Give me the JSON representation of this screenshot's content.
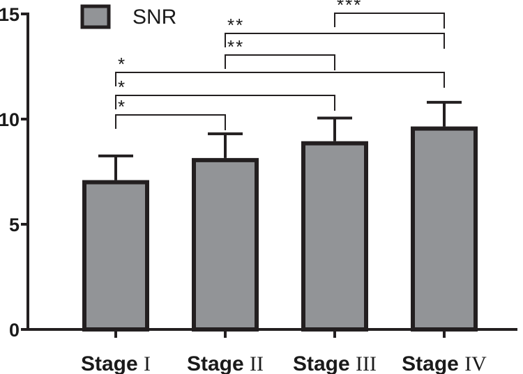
{
  "chart_data": {
    "type": "bar",
    "title": "",
    "xlabel": "",
    "ylabel": "",
    "ylim": [
      0,
      15
    ],
    "yticks": [
      0,
      5,
      10,
      15
    ],
    "ytick_labels": [
      "0",
      "5",
      "10",
      "15"
    ],
    "categories": [
      {
        "prefix": "Stage ",
        "roman": "I"
      },
      {
        "prefix": "Stage ",
        "roman": "II"
      },
      {
        "prefix": "Stage ",
        "roman": "III"
      },
      {
        "prefix": "Stage ",
        "roman": "IV"
      }
    ],
    "series": [
      {
        "name": "SNR",
        "values": [
          7.0,
          8.05,
          8.85,
          9.55
        ],
        "errors": [
          1.25,
          1.25,
          1.2,
          1.25
        ]
      }
    ],
    "legend": {
      "label": "SNR",
      "position": "top-left"
    },
    "significance": [
      {
        "from": 0,
        "to": 1,
        "label": "*"
      },
      {
        "from": 0,
        "to": 2,
        "label": "*"
      },
      {
        "from": 0,
        "to": 3,
        "label": "*"
      },
      {
        "from": 1,
        "to": 2,
        "label": "**"
      },
      {
        "from": 1,
        "to": 3,
        "label": "**"
      },
      {
        "from": 2,
        "to": 3,
        "label": "***"
      }
    ],
    "colors": {
      "bar_fill": "#929497",
      "bar_stroke": "#231f20",
      "axis": "#231f20",
      "text": "#1a1a1a"
    }
  }
}
